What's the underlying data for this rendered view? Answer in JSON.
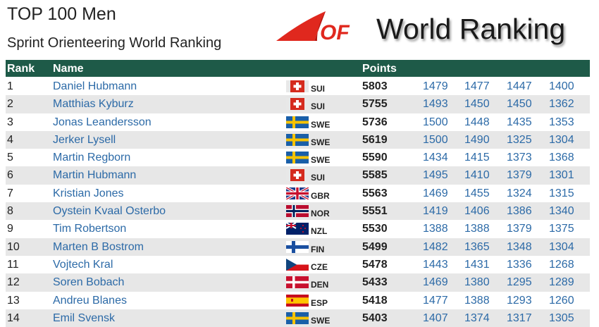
{
  "header": {
    "title": "TOP 100 Men",
    "subtitle": "Sprint Orienteering World Ranking",
    "logo_icon": "iof-logo",
    "brand": "World Ranking",
    "accent_color": "#1e5a48",
    "link_color": "#2c6aa7"
  },
  "table": {
    "columns": {
      "rank": "Rank",
      "name": "Name",
      "points": "Points"
    },
    "rows": [
      {
        "rank": "1",
        "name": "Daniel Hubmann",
        "country": "SUI",
        "points": "5803",
        "scores": [
          "1479",
          "1477",
          "1447",
          "1400"
        ]
      },
      {
        "rank": "2",
        "name": "Matthias Kyburz",
        "country": "SUI",
        "points": "5755",
        "scores": [
          "1493",
          "1450",
          "1450",
          "1362"
        ]
      },
      {
        "rank": "3",
        "name": "Jonas Leandersson",
        "country": "SWE",
        "points": "5736",
        "scores": [
          "1500",
          "1448",
          "1435",
          "1353"
        ]
      },
      {
        "rank": "4",
        "name": "Jerker Lysell",
        "country": "SWE",
        "points": "5619",
        "scores": [
          "1500",
          "1490",
          "1325",
          "1304"
        ]
      },
      {
        "rank": "5",
        "name": "Martin Regborn",
        "country": "SWE",
        "points": "5590",
        "scores": [
          "1434",
          "1415",
          "1373",
          "1368"
        ]
      },
      {
        "rank": "6",
        "name": "Martin Hubmann",
        "country": "SUI",
        "points": "5585",
        "scores": [
          "1495",
          "1410",
          "1379",
          "1301"
        ]
      },
      {
        "rank": "7",
        "name": "Kristian Jones",
        "country": "GBR",
        "points": "5563",
        "scores": [
          "1469",
          "1455",
          "1324",
          "1315"
        ]
      },
      {
        "rank": "8",
        "name": "Oystein Kvaal Osterbo",
        "country": "NOR",
        "points": "5551",
        "scores": [
          "1419",
          "1406",
          "1386",
          "1340"
        ]
      },
      {
        "rank": "9",
        "name": "Tim Robertson",
        "country": "NZL",
        "points": "5530",
        "scores": [
          "1388",
          "1388",
          "1379",
          "1375"
        ]
      },
      {
        "rank": "10",
        "name": "Marten B Bostrom",
        "country": "FIN",
        "points": "5499",
        "scores": [
          "1482",
          "1365",
          "1348",
          "1304"
        ]
      },
      {
        "rank": "11",
        "name": "Vojtech Kral",
        "country": "CZE",
        "points": "5478",
        "scores": [
          "1443",
          "1431",
          "1336",
          "1268"
        ]
      },
      {
        "rank": "12",
        "name": "Soren Bobach",
        "country": "DEN",
        "points": "5433",
        "scores": [
          "1469",
          "1380",
          "1295",
          "1289"
        ]
      },
      {
        "rank": "13",
        "name": "Andreu Blanes",
        "country": "ESP",
        "points": "5418",
        "scores": [
          "1477",
          "1388",
          "1293",
          "1260"
        ]
      },
      {
        "rank": "14",
        "name": "Emil Svensk",
        "country": "SWE",
        "points": "5403",
        "scores": [
          "1407",
          "1374",
          "1317",
          "1305"
        ]
      }
    ]
  }
}
